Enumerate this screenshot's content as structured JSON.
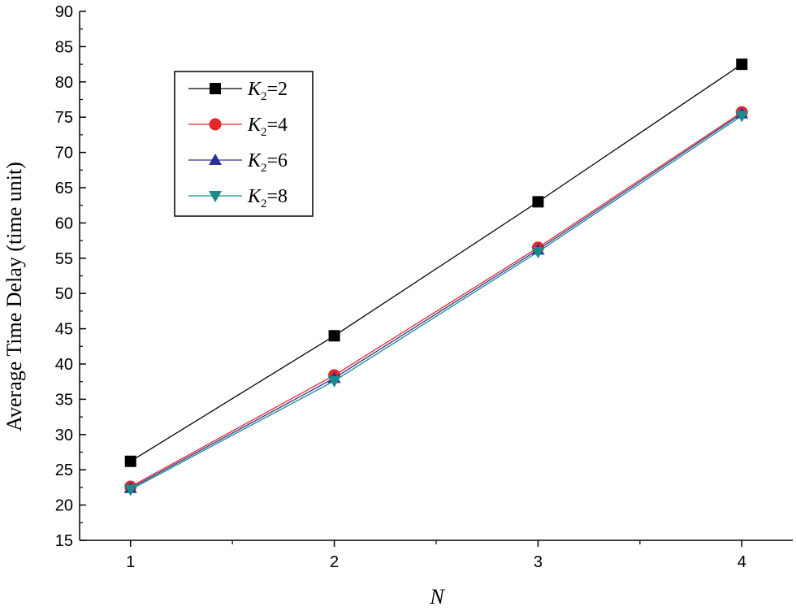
{
  "chart_data": {
    "type": "line",
    "title": "",
    "xlabel": "N",
    "ylabel": "Average Time Delay (time unit)",
    "x": [
      1,
      2,
      3,
      4
    ],
    "xlim": [
      0.75,
      4.25
    ],
    "ylim": [
      15,
      90
    ],
    "xticks": [
      "1",
      "2",
      "3",
      "4"
    ],
    "yticks": [
      "15",
      "20",
      "25",
      "30",
      "35",
      "40",
      "45",
      "50",
      "55",
      "60",
      "65",
      "70",
      "75",
      "80",
      "85",
      "90"
    ],
    "grid": false,
    "legend_position": "top-left",
    "series": [
      {
        "name": "K2=2",
        "name_base": "K",
        "name_sub": "2",
        "name_rest": "=2",
        "color": "#000000",
        "marker": "square",
        "values": [
          26.2,
          44.0,
          63.0,
          82.5
        ]
      },
      {
        "name": "K2=4",
        "name_base": "K",
        "name_sub": "2",
        "name_rest": "=4",
        "color": "#e8262a",
        "marker": "circle",
        "values": [
          22.6,
          38.4,
          56.5,
          75.7
        ]
      },
      {
        "name": "K2=6",
        "name_base": "K",
        "name_sub": "2",
        "name_rest": "=6",
        "color": "#2e3192",
        "marker": "triangle-up",
        "values": [
          22.4,
          38.0,
          56.2,
          75.5
        ]
      },
      {
        "name": "K2=8",
        "name_base": "K",
        "name_sub": "2",
        "name_rest": "=8",
        "color": "#1a8a8a",
        "marker": "triangle-down",
        "values": [
          22.2,
          37.6,
          55.9,
          75.2
        ]
      }
    ]
  }
}
